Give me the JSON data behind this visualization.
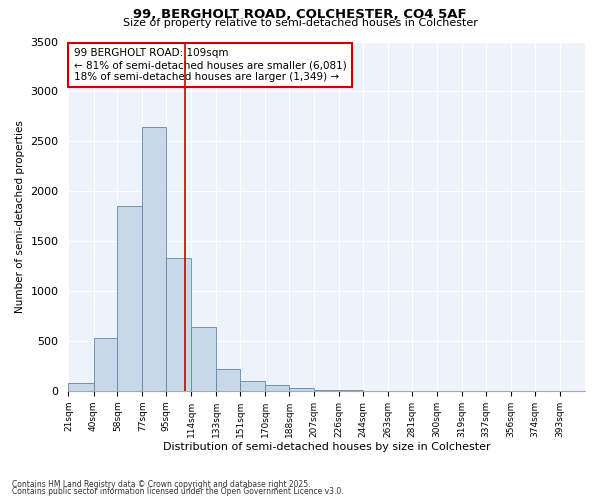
{
  "title_line1": "99, BERGHOLT ROAD, COLCHESTER, CO4 5AF",
  "title_line2": "Size of property relative to semi-detached houses in Colchester",
  "xlabel": "Distribution of semi-detached houses by size in Colchester",
  "ylabel": "Number of semi-detached properties",
  "footnote1": "Contains HM Land Registry data © Crown copyright and database right 2025.",
  "footnote2": "Contains public sector information licensed under the Open Government Licence v3.0.",
  "property_label": "99 BERGHOLT ROAD: 109sqm",
  "smaller_label": "← 81% of semi-detached houses are smaller (6,081)",
  "larger_label": "18% of semi-detached houses are larger (1,349) →",
  "property_value": 109,
  "bar_color": "#c8d8e8",
  "bar_edge_color": "#5a8ab0",
  "vline_color": "#cc0000",
  "annotation_box_color": "#cc0000",
  "background_color": "#eef2fa",
  "categories": [
    "21sqm",
    "40sqm",
    "58sqm",
    "77sqm",
    "95sqm",
    "114sqm",
    "133sqm",
    "151sqm",
    "170sqm",
    "188sqm",
    "207sqm",
    "226sqm",
    "244sqm",
    "263sqm",
    "281sqm",
    "300sqm",
    "319sqm",
    "337sqm",
    "356sqm",
    "374sqm",
    "393sqm"
  ],
  "bin_edges": [
    21,
    40,
    58,
    77,
    95,
    114,
    133,
    151,
    170,
    188,
    207,
    226,
    244,
    263,
    281,
    300,
    319,
    337,
    356,
    374,
    393
  ],
  "bar_heights": [
    75,
    530,
    1850,
    2640,
    1330,
    640,
    220,
    100,
    60,
    30,
    10,
    5,
    2,
    1,
    0,
    0,
    0,
    0,
    0,
    0
  ],
  "ylim": [
    0,
    3500
  ],
  "yticks": [
    0,
    500,
    1000,
    1500,
    2000,
    2500,
    3000,
    3500
  ]
}
